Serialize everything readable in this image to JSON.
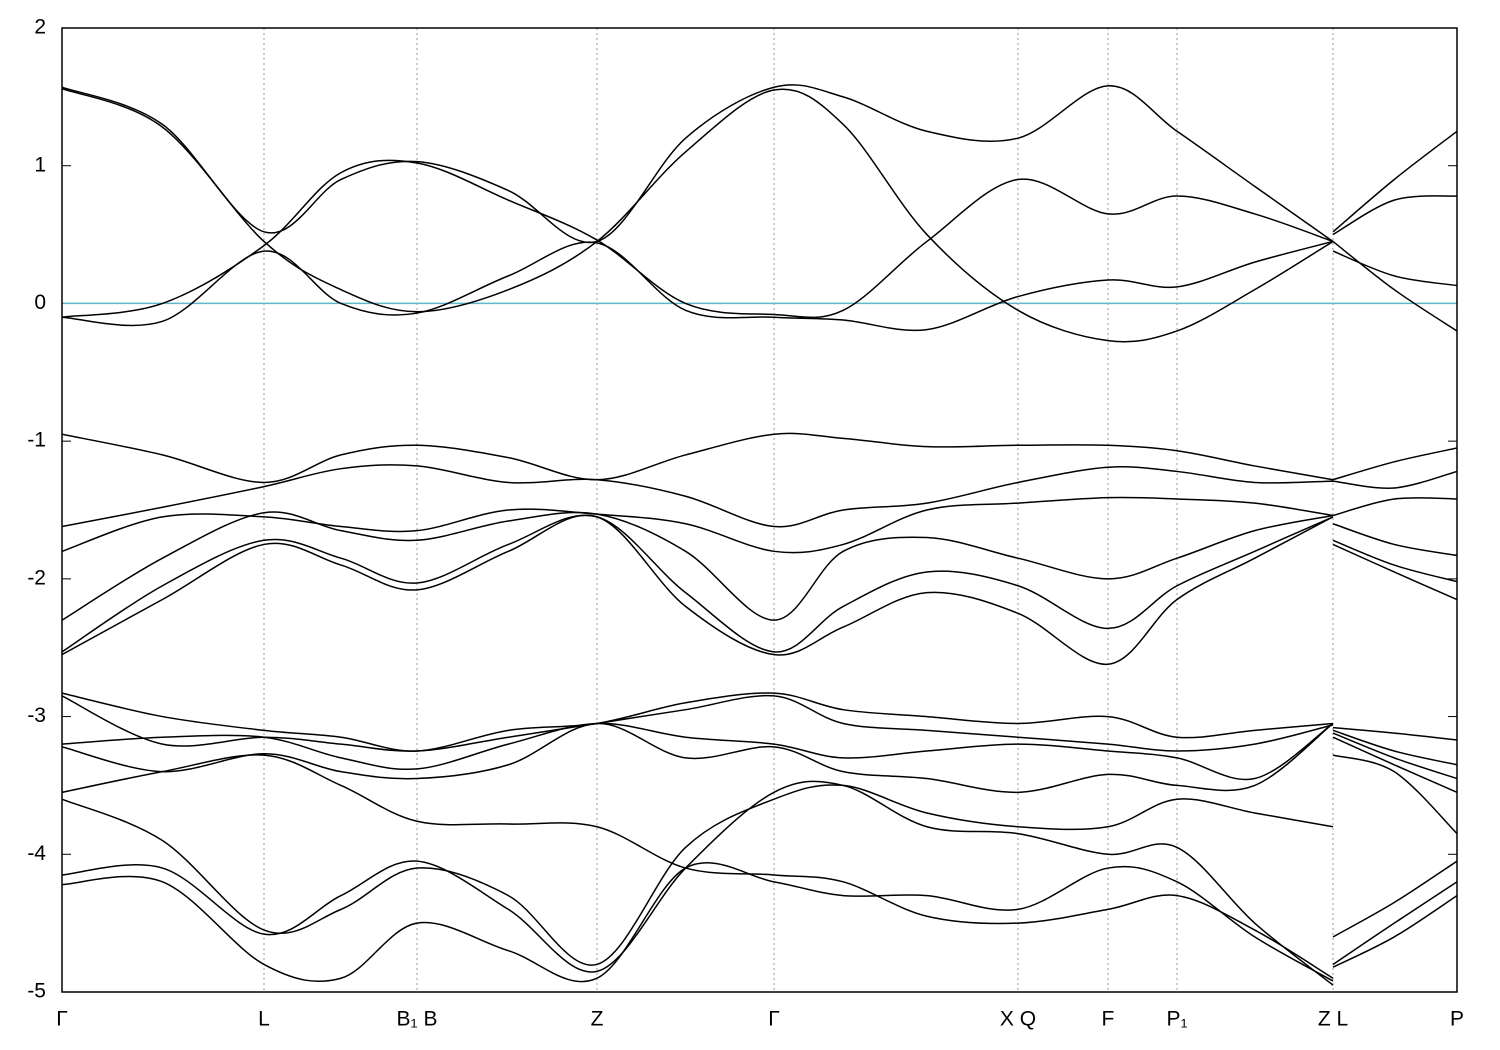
{
  "chart_data": {
    "type": "line",
    "x": [
      0,
      0.072,
      0.1448,
      0.2,
      0.2545,
      0.32,
      0.3835,
      0.447,
      0.5104,
      0.56,
      0.62,
      0.6853,
      0.7498,
      0.7993,
      0.855,
      0.9111,
      0.9111,
      0.9111,
      0.955,
      1
    ],
    "xlim": [
      0,
      1
    ],
    "xticks": [
      {
        "value": 0,
        "label": "Γ"
      },
      {
        "value": 0.1448,
        "label": "L"
      },
      {
        "value": 0.2545,
        "label": "B₁ B"
      },
      {
        "value": 0.3835,
        "label": "Z"
      },
      {
        "value": 0.5104,
        "label": "Γ"
      },
      {
        "value": 0.6853,
        "label": "X Q"
      },
      {
        "value": 0.7498,
        "label": "F"
      },
      {
        "value": 0.7993,
        "label": "P₁"
      },
      {
        "value": 0.9111,
        "label": "Z L"
      },
      {
        "value": 1,
        "label": "P"
      }
    ],
    "ylim": [
      -5,
      2
    ],
    "yticks": [
      -5,
      -4,
      -3,
      -2,
      -1,
      0,
      1,
      2
    ],
    "grid": true,
    "line_color": "#000000",
    "fermi_level": 0,
    "fermi_color": "#5fb8c8",
    "series": [
      {
        "values": [
          1.57,
          1.3,
          0.52,
          0.9,
          1.03,
          0.82,
          0.45,
          1.2,
          1.57,
          1.5,
          1.25,
          1.2,
          1.58,
          1.25,
          0.85,
          0.45,
          null,
          0.52,
          0.9,
          1.25
        ]
      },
      {
        "values": [
          1.56,
          1.28,
          0.45,
          0.1,
          -0.06,
          0.1,
          0.45,
          1.1,
          1.55,
          1.3,
          0.5,
          -0.05,
          -0.27,
          -0.2,
          0.1,
          0.45,
          null,
          0.45,
          0.1,
          -0.2
        ]
      },
      {
        "values": [
          -0.1,
          -0.13,
          0.38,
          0.0,
          -0.07,
          0.2,
          0.44,
          -0.05,
          -0.1,
          -0.12,
          -0.19,
          0.05,
          0.17,
          0.12,
          0.3,
          0.45,
          null,
          0.38,
          0.2,
          0.13
        ]
      },
      {
        "values": [
          -0.1,
          0.0,
          0.42,
          0.95,
          1.02,
          0.75,
          0.46,
          0.0,
          -0.08,
          -0.05,
          0.45,
          0.9,
          0.65,
          0.78,
          0.65,
          0.45,
          null,
          0.5,
          0.75,
          0.78
        ]
      },
      {
        "values": [
          -0.95,
          -1.1,
          -1.3,
          -1.1,
          -1.03,
          -1.12,
          -1.28,
          -1.1,
          -0.95,
          -0.98,
          -1.04,
          -1.03,
          -1.03,
          -1.07,
          -1.18,
          -1.28,
          null,
          -1.28,
          -1.15,
          -1.05
        ]
      },
      {
        "values": [
          -1.62,
          -1.48,
          -1.33,
          -1.2,
          -1.18,
          -1.3,
          -1.28,
          -1.4,
          -1.62,
          -1.5,
          -1.45,
          -1.3,
          -1.19,
          -1.22,
          -1.3,
          -1.29,
          null,
          -1.29,
          -1.34,
          -1.22
        ]
      },
      {
        "values": [
          -1.8,
          -1.55,
          -1.55,
          -1.62,
          -1.65,
          -1.5,
          -1.53,
          -1.6,
          -1.8,
          -1.75,
          -1.5,
          -1.45,
          -1.41,
          -1.42,
          -1.45,
          -1.54,
          null,
          -1.54,
          -1.42,
          -1.42
        ]
      },
      {
        "values": [
          -2.3,
          -1.85,
          -1.52,
          -1.65,
          -1.72,
          -1.58,
          -1.53,
          -1.8,
          -2.3,
          -1.8,
          -1.7,
          -1.85,
          -2.0,
          -1.85,
          -1.65,
          -1.54,
          null,
          -1.6,
          -1.75,
          -1.83
        ]
      },
      {
        "values": [
          -2.53,
          -2.05,
          -1.72,
          -1.85,
          -2.03,
          -1.75,
          -1.55,
          -2.1,
          -2.53,
          -2.2,
          -1.95,
          -2.05,
          -2.36,
          -2.05,
          -1.8,
          -1.55,
          null,
          -1.72,
          -1.9,
          -2.02
        ]
      },
      {
        "values": [
          -2.55,
          -2.15,
          -1.75,
          -1.9,
          -2.08,
          -1.8,
          -1.55,
          -2.2,
          -2.55,
          -2.35,
          -2.1,
          -2.25,
          -2.62,
          -2.15,
          -1.85,
          -1.55,
          null,
          -1.75,
          -1.95,
          -2.15
        ]
      },
      {
        "values": [
          -2.83,
          -3.0,
          -3.1,
          -3.15,
          -3.25,
          -3.1,
          -3.05,
          -2.9,
          -2.83,
          -2.95,
          -3.0,
          -3.05,
          -3.0,
          -3.15,
          -3.1,
          -3.05,
          null,
          -3.08,
          -3.12,
          -3.17
        ]
      },
      {
        "values": [
          -2.85,
          -3.2,
          -3.15,
          -3.2,
          -3.25,
          -3.15,
          -3.05,
          -2.95,
          -2.85,
          -3.05,
          -3.1,
          -3.15,
          -3.2,
          -3.25,
          -3.2,
          -3.06,
          null,
          -3.1,
          -3.25,
          -3.35
        ]
      },
      {
        "values": [
          -3.2,
          -3.15,
          -3.15,
          -3.3,
          -3.38,
          -3.2,
          -3.05,
          -3.15,
          -3.2,
          -3.3,
          -3.25,
          -3.2,
          -3.25,
          -3.3,
          -3.45,
          -3.05,
          null,
          -3.12,
          -3.3,
          -3.45
        ]
      },
      {
        "values": [
          -3.22,
          -3.4,
          -3.27,
          -3.4,
          -3.45,
          -3.35,
          -3.05,
          -3.3,
          -3.22,
          -3.4,
          -3.45,
          -3.55,
          -3.42,
          -3.5,
          -3.5,
          -3.05,
          null,
          -3.15,
          -3.35,
          -3.55
        ]
      },
      {
        "values": [
          -3.55,
          -3.4,
          -3.28,
          -3.5,
          -3.76,
          -3.78,
          -3.8,
          -4.1,
          -4.15,
          -4.2,
          -4.45,
          -4.5,
          -4.4,
          -4.3,
          -4.55,
          -4.9,
          null,
          -4.6,
          -4.35,
          -4.05
        ]
      },
      {
        "values": [
          -3.6,
          -3.9,
          -4.55,
          -4.4,
          -4.1,
          -4.3,
          -4.8,
          -3.95,
          -3.6,
          -3.5,
          -3.7,
          -3.8,
          -3.8,
          -3.6,
          -3.7,
          -3.8,
          null,
          -3.28,
          -3.4,
          -3.85
        ]
      },
      {
        "values": [
          -4.15,
          -4.1,
          -4.58,
          -4.3,
          -4.05,
          -4.4,
          -4.85,
          -4.1,
          -3.55,
          -3.5,
          -3.8,
          -3.85,
          -4.0,
          -3.95,
          -4.5,
          -4.95,
          null,
          -4.8,
          -4.5,
          -4.2
        ]
      },
      {
        "values": [
          -4.22,
          -4.2,
          -4.8,
          -4.9,
          -4.5,
          -4.7,
          -4.9,
          -4.1,
          -4.2,
          -4.3,
          -4.3,
          -4.4,
          -4.1,
          -4.2,
          -4.6,
          -4.92,
          null,
          -4.82,
          -4.6,
          -4.3
        ]
      }
    ]
  }
}
